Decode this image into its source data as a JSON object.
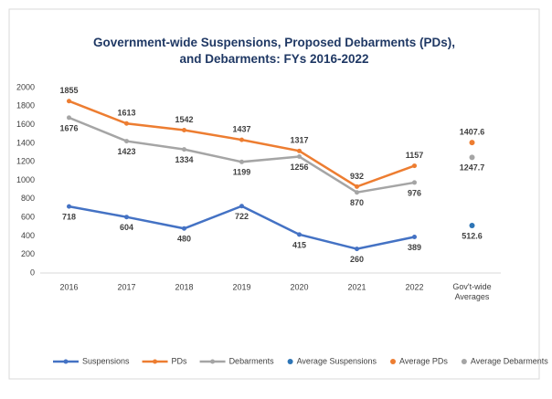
{
  "chart_data": {
    "type": "line",
    "title": "Government-wide Suspensions, Proposed Debarments (PDs), and Debarments: FYs 2016-2022",
    "categories": [
      "2016",
      "2017",
      "2018",
      "2019",
      "2020",
      "2021",
      "2022",
      "Gov't-wide Averages"
    ],
    "ylim": [
      0,
      2000
    ],
    "yticks": [
      0,
      200,
      400,
      600,
      800,
      1000,
      1200,
      1400,
      1600,
      1800,
      2000
    ],
    "grid": false,
    "legend": "bottom",
    "series": [
      {
        "name": "Suspensions",
        "color": "#4472c4",
        "style": "line",
        "label_position": "below",
        "values": [
          718,
          604,
          480,
          722,
          415,
          260,
          389,
          null
        ]
      },
      {
        "name": "PDs",
        "color": "#ed7d31",
        "style": "line",
        "label_position": "above",
        "values": [
          1855,
          1613,
          1542,
          1437,
          1317,
          932,
          1157,
          null
        ]
      },
      {
        "name": "Debarments",
        "color": "#a5a5a5",
        "style": "line",
        "label_position": "below",
        "values": [
          1676,
          1423,
          1334,
          1199,
          1256,
          870,
          976,
          null
        ]
      },
      {
        "name": "Average Suspensions",
        "color": "#2e75b6",
        "style": "marker",
        "label_position": "below",
        "values": [
          null,
          null,
          null,
          null,
          null,
          null,
          null,
          512.6
        ]
      },
      {
        "name": "Average PDs",
        "color": "#ed7d31",
        "style": "marker",
        "label_position": "above",
        "values": [
          null,
          null,
          null,
          null,
          null,
          null,
          null,
          1407.6
        ]
      },
      {
        "name": "Average Debarments",
        "color": "#a5a5a5",
        "style": "marker",
        "label_position": "below",
        "values": [
          null,
          null,
          null,
          null,
          null,
          null,
          null,
          1247.7
        ]
      }
    ]
  }
}
